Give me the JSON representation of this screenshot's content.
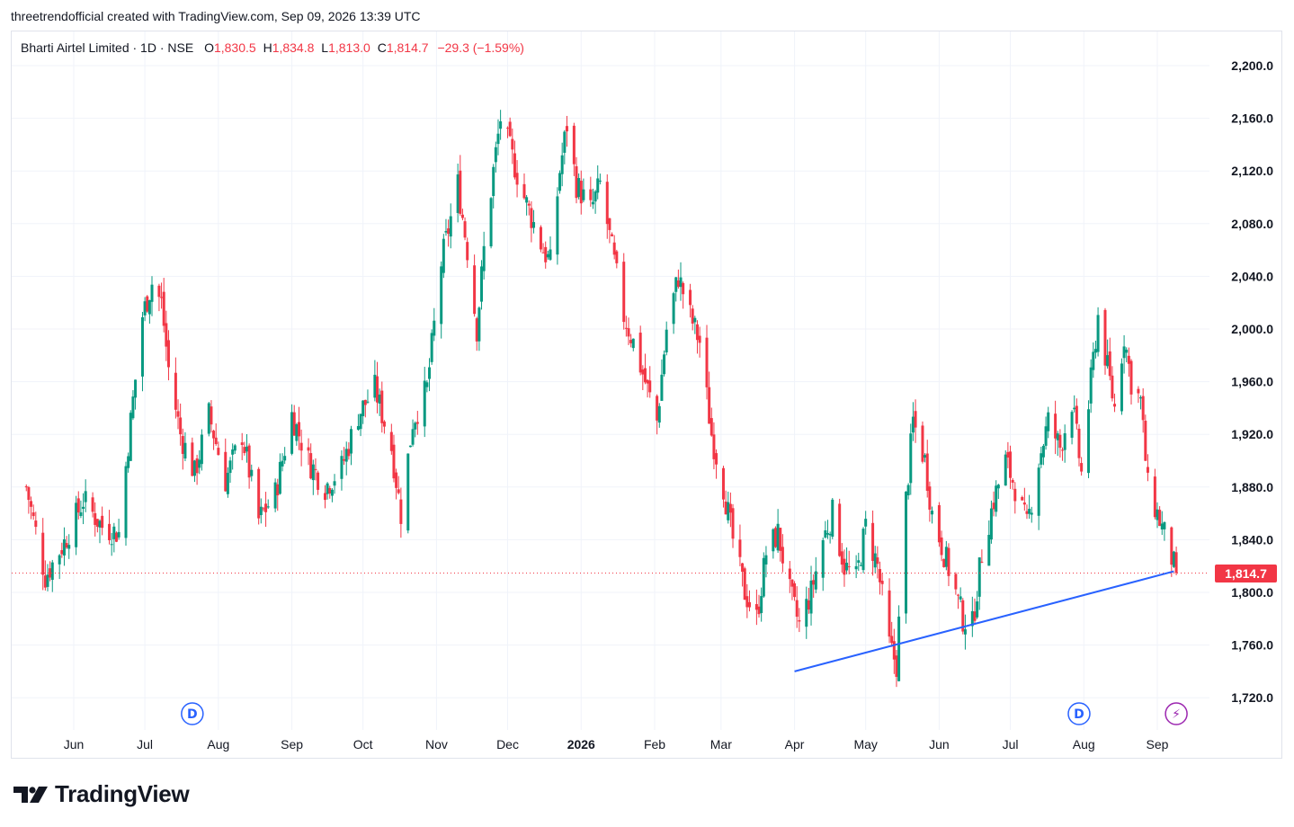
{
  "caption": "threetrendofficial created with TradingView.com, Sep 09, 2026 13:39 UTC",
  "legend": {
    "symbol": "Bharti Airtel Limited · 1D · NSE",
    "open_label": "O",
    "open": "1,830.5",
    "high_label": "H",
    "high": "1,834.8",
    "low_label": "L",
    "low": "1,813.0",
    "close_label": "C",
    "close": "1,814.7",
    "change": "−29.3 (−1.59%)"
  },
  "last_price_label": "1,814.7",
  "brand": {
    "name": "TradingView",
    "logo_icon": "tradingview-logo-icon"
  },
  "colors": {
    "up": "#089981",
    "down": "#f23645",
    "trendline": "#2962ff",
    "grid": "#f0f3fa",
    "event": "#2962ff",
    "event_alt": "#9c27b0"
  },
  "chart_data": {
    "type": "candlestick",
    "title": "Bharti Airtel Limited · 1D · NSE",
    "xlabel": "",
    "ylabel": "",
    "ylim": [
      1700,
      2220
    ],
    "y_ticks": [
      "1,720.0",
      "1,760.0",
      "1,800.0",
      "1,840.0",
      "1,880.0",
      "1,920.0",
      "1,960.0",
      "2,000.0",
      "2,040.0",
      "2,080.0",
      "2,120.0",
      "2,160.0",
      "2,200.0"
    ],
    "y_tick_values": [
      1720,
      1760,
      1800,
      1840,
      1880,
      1920,
      1960,
      2000,
      2040,
      2080,
      2120,
      2160,
      2200
    ],
    "x_ticks": [
      {
        "label": "Jun",
        "date": "2025-06-01",
        "bold": false
      },
      {
        "label": "Jul",
        "date": "2025-07-01",
        "bold": false
      },
      {
        "label": "Aug",
        "date": "2025-08-01",
        "bold": false
      },
      {
        "label": "Sep",
        "date": "2025-09-01",
        "bold": false
      },
      {
        "label": "Oct",
        "date": "2025-10-01",
        "bold": false
      },
      {
        "label": "Nov",
        "date": "2025-11-01",
        "bold": false
      },
      {
        "label": "Dec",
        "date": "2025-12-01",
        "bold": false
      },
      {
        "label": "2026",
        "date": "2026-01-01",
        "bold": true
      },
      {
        "label": "Feb",
        "date": "2026-02-01",
        "bold": false
      },
      {
        "label": "Mar",
        "date": "2026-03-01",
        "bold": false
      },
      {
        "label": "Apr",
        "date": "2026-04-01",
        "bold": false
      },
      {
        "label": "May",
        "date": "2026-05-01",
        "bold": false
      },
      {
        "label": "Jun",
        "date": "2026-06-01",
        "bold": false
      },
      {
        "label": "Jul",
        "date": "2026-07-01",
        "bold": false
      },
      {
        "label": "Aug",
        "date": "2026-08-01",
        "bold": false
      },
      {
        "label": "Sep",
        "date": "2026-09-01",
        "bold": false
      }
    ],
    "close_series": [
      {
        "date": "2025-05-12",
        "close": 1880
      },
      {
        "date": "2025-05-20",
        "close": 1812
      },
      {
        "date": "2025-05-28",
        "close": 1838
      },
      {
        "date": "2025-06-05",
        "close": 1870
      },
      {
        "date": "2025-06-13",
        "close": 1850
      },
      {
        "date": "2025-06-20",
        "close": 1845
      },
      {
        "date": "2025-06-25",
        "close": 1930
      },
      {
        "date": "2025-06-30",
        "close": 2010
      },
      {
        "date": "2025-07-04",
        "close": 2035
      },
      {
        "date": "2025-07-08",
        "close": 2020
      },
      {
        "date": "2025-07-11",
        "close": 1970
      },
      {
        "date": "2025-07-16",
        "close": 1920
      },
      {
        "date": "2025-07-22",
        "close": 1890
      },
      {
        "date": "2025-07-28",
        "close": 1935
      },
      {
        "date": "2025-08-04",
        "close": 1885
      },
      {
        "date": "2025-08-11",
        "close": 1920
      },
      {
        "date": "2025-08-18",
        "close": 1855
      },
      {
        "date": "2025-08-25",
        "close": 1875
      },
      {
        "date": "2025-09-01",
        "close": 1935
      },
      {
        "date": "2025-09-08",
        "close": 1900
      },
      {
        "date": "2025-09-15",
        "close": 1880
      },
      {
        "date": "2025-09-22",
        "close": 1895
      },
      {
        "date": "2025-09-29",
        "close": 1935
      },
      {
        "date": "2025-10-06",
        "close": 1955
      },
      {
        "date": "2025-10-13",
        "close": 1910
      },
      {
        "date": "2025-10-17",
        "close": 1860
      },
      {
        "date": "2025-10-22",
        "close": 1930
      },
      {
        "date": "2025-10-28",
        "close": 1955
      },
      {
        "date": "2025-11-03",
        "close": 2050
      },
      {
        "date": "2025-11-10",
        "close": 2110
      },
      {
        "date": "2025-11-14",
        "close": 2060
      },
      {
        "date": "2025-11-18",
        "close": 2000
      },
      {
        "date": "2025-11-21",
        "close": 2060
      },
      {
        "date": "2025-11-25",
        "close": 2120
      },
      {
        "date": "2025-11-28",
        "close": 2160
      },
      {
        "date": "2025-12-03",
        "close": 2130
      },
      {
        "date": "2025-12-08",
        "close": 2100
      },
      {
        "date": "2025-12-12",
        "close": 2080
      },
      {
        "date": "2025-12-16",
        "close": 2060
      },
      {
        "date": "2025-12-19",
        "close": 2050
      },
      {
        "date": "2025-12-23",
        "close": 2120
      },
      {
        "date": "2025-12-26",
        "close": 2155
      },
      {
        "date": "2025-12-30",
        "close": 2110
      },
      {
        "date": "2026-01-05",
        "close": 2090
      },
      {
        "date": "2026-01-09",
        "close": 2110
      },
      {
        "date": "2026-01-14",
        "close": 2060
      },
      {
        "date": "2026-01-19",
        "close": 2010
      },
      {
        "date": "2026-01-23",
        "close": 1990
      },
      {
        "date": "2026-01-28",
        "close": 1960
      },
      {
        "date": "2026-02-02",
        "close": 1930
      },
      {
        "date": "2026-02-06",
        "close": 2000
      },
      {
        "date": "2026-02-11",
        "close": 2040
      },
      {
        "date": "2026-02-16",
        "close": 2010
      },
      {
        "date": "2026-02-20",
        "close": 1990
      },
      {
        "date": "2026-02-25",
        "close": 1920
      },
      {
        "date": "2026-03-02",
        "close": 1880
      },
      {
        "date": "2026-03-06",
        "close": 1840
      },
      {
        "date": "2026-03-11",
        "close": 1800
      },
      {
        "date": "2026-03-16",
        "close": 1780
      },
      {
        "date": "2026-03-20",
        "close": 1830
      },
      {
        "date": "2026-03-25",
        "close": 1845
      },
      {
        "date": "2026-03-30",
        "close": 1800
      },
      {
        "date": "2026-04-03",
        "close": 1775
      },
      {
        "date": "2026-04-08",
        "close": 1800
      },
      {
        "date": "2026-04-13",
        "close": 1840
      },
      {
        "date": "2026-04-17",
        "close": 1860
      },
      {
        "date": "2026-04-22",
        "close": 1820
      },
      {
        "date": "2026-04-27",
        "close": 1810
      },
      {
        "date": "2026-05-01",
        "close": 1850
      },
      {
        "date": "2026-05-06",
        "close": 1820
      },
      {
        "date": "2026-05-11",
        "close": 1760
      },
      {
        "date": "2026-05-14",
        "close": 1745
      },
      {
        "date": "2026-05-18",
        "close": 1870
      },
      {
        "date": "2026-05-21",
        "close": 1930
      },
      {
        "date": "2026-05-26",
        "close": 1900
      },
      {
        "date": "2026-05-29",
        "close": 1860
      },
      {
        "date": "2026-06-03",
        "close": 1830
      },
      {
        "date": "2026-06-08",
        "close": 1800
      },
      {
        "date": "2026-06-11",
        "close": 1780
      },
      {
        "date": "2026-06-15",
        "close": 1775
      },
      {
        "date": "2026-06-19",
        "close": 1830
      },
      {
        "date": "2026-06-24",
        "close": 1870
      },
      {
        "date": "2026-06-29",
        "close": 1900
      },
      {
        "date": "2026-07-03",
        "close": 1880
      },
      {
        "date": "2026-07-08",
        "close": 1850
      },
      {
        "date": "2026-07-13",
        "close": 1900
      },
      {
        "date": "2026-07-17",
        "close": 1930
      },
      {
        "date": "2026-07-22",
        "close": 1910
      },
      {
        "date": "2026-07-27",
        "close": 1945
      },
      {
        "date": "2026-07-31",
        "close": 1890
      },
      {
        "date": "2026-08-04",
        "close": 1960
      },
      {
        "date": "2026-08-07",
        "close": 2010
      },
      {
        "date": "2026-08-11",
        "close": 1970
      },
      {
        "date": "2026-08-14",
        "close": 1940
      },
      {
        "date": "2026-08-18",
        "close": 1995
      },
      {
        "date": "2026-08-21",
        "close": 1960
      },
      {
        "date": "2026-08-25",
        "close": 1945
      },
      {
        "date": "2026-08-28",
        "close": 1880
      },
      {
        "date": "2026-09-01",
        "close": 1860
      },
      {
        "date": "2026-09-04",
        "close": 1844
      },
      {
        "date": "2026-09-09",
        "close": 1814.7
      }
    ],
    "last_price": 1814.7,
    "trendline": [
      {
        "date": "2026-04-01",
        "price": 1740
      },
      {
        "date": "2026-09-08",
        "price": 1816
      }
    ],
    "events": [
      {
        "date": "2025-07-21",
        "label": "D",
        "kind": "dividend"
      },
      {
        "date": "2026-07-30",
        "label": "D",
        "kind": "dividend"
      },
      {
        "date": "2026-09-09",
        "label": "⚡",
        "kind": "earnings"
      }
    ],
    "grid": true,
    "legend_position": "top-left"
  }
}
